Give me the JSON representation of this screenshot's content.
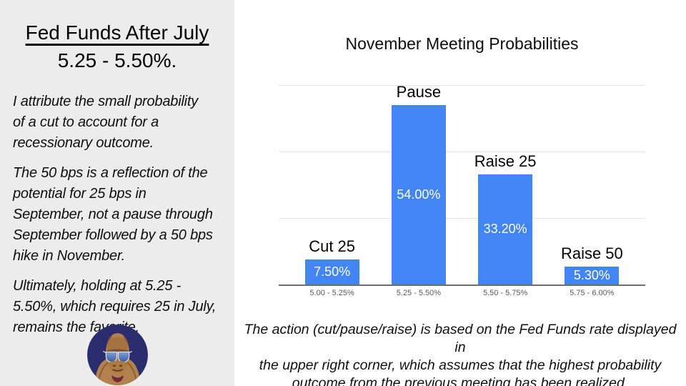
{
  "sidebar": {
    "title_line1": "Fed Funds After July",
    "title_line2": "5.25 - 5.50%.",
    "paragraphs": [
      "I attribute the small probability\nof a cut to account for a\nrecessionary outcome.",
      "The 50 bps is a reflection of the\npotential for 25 bps in\nSeptember, not a pause through\nSeptember followed by a 50 bps\nhike in November.",
      "Ultimately, holding at 5.25 -\n5.50%, which requires 25 in July,\nremains the favorite."
    ],
    "avatar_icon": "gorilla-with-sunglasses-avatar"
  },
  "chart_data": {
    "type": "bar",
    "title": "November Meeting Probabilities",
    "categories": [
      "5.00 - 5.25%",
      "5.25 - 5.50%",
      "5.50 - 5.75%",
      "5.75 - 6.00%"
    ],
    "annotations": [
      "Cut 25",
      "Pause",
      "Raise 25",
      "Raise 50"
    ],
    "values": [
      7.5,
      54.0,
      33.2,
      5.3
    ],
    "value_labels": [
      "7.50%",
      "54.00%",
      "33.20%",
      "5.30%"
    ],
    "xlabel": "",
    "ylabel": "",
    "ylim": [
      0,
      60
    ],
    "gridline_values": [
      20,
      40,
      60
    ],
    "grid": true,
    "legend_position": "none",
    "bar_color": "#4285f4"
  },
  "caption": "The action (cut/pause/raise) is based on the Fed Funds rate displayed in\nthe upper right corner, which assumes that the highest probability\noutcome from the previous meeting has been realized."
}
